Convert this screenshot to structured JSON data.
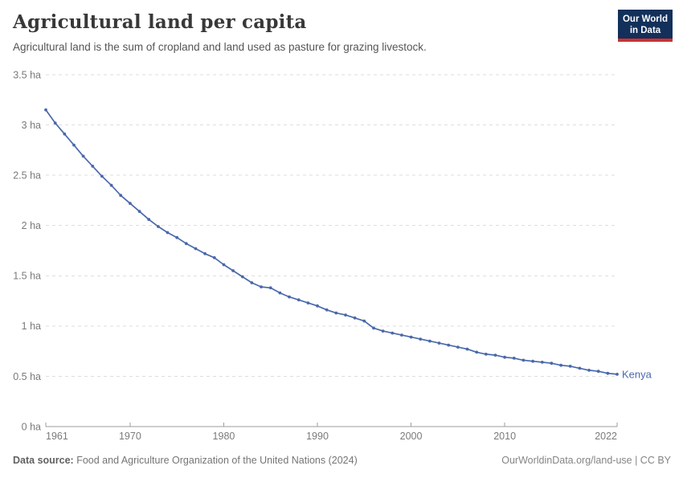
{
  "header": {
    "title": "Agricultural land per capita",
    "subtitle": "Agricultural land is the sum of cropland and land used as pasture for grazing livestock.",
    "logo": {
      "line1": "Our World",
      "line2": "in Data",
      "bg_color": "#12305a",
      "accent_color": "#cf3130"
    }
  },
  "footer": {
    "source_label": "Data source:",
    "source_text": "Food and Agriculture Organization of the United Nations (2024)",
    "attribution": "OurWorldinData.org/land-use | CC BY"
  },
  "chart_data": {
    "type": "line",
    "title": "Agricultural land per capita",
    "unit": "ha",
    "xlim": [
      1961,
      2022
    ],
    "ylim": [
      0,
      3.5
    ],
    "grid": "horizontal-dashed",
    "legend_position": "end-of-line-label",
    "x_ticks": [
      1961,
      1970,
      1980,
      1990,
      2000,
      2010,
      2022
    ],
    "y_ticks": [
      {
        "value": 0,
        "label": "0 ha"
      },
      {
        "value": 0.5,
        "label": "0.5 ha"
      },
      {
        "value": 1,
        "label": "1 ha"
      },
      {
        "value": 1.5,
        "label": "1.5 ha"
      },
      {
        "value": 2,
        "label": "2 ha"
      },
      {
        "value": 2.5,
        "label": "2.5 ha"
      },
      {
        "value": 3,
        "label": "3 ha"
      },
      {
        "value": 3.5,
        "label": "3.5 ha"
      }
    ],
    "series": [
      {
        "name": "Kenya",
        "color": "#4a68ab",
        "x": [
          1961,
          1962,
          1963,
          1964,
          1965,
          1966,
          1967,
          1968,
          1969,
          1970,
          1971,
          1972,
          1973,
          1974,
          1975,
          1976,
          1977,
          1978,
          1979,
          1980,
          1981,
          1982,
          1983,
          1984,
          1985,
          1986,
          1987,
          1988,
          1989,
          1990,
          1991,
          1992,
          1993,
          1994,
          1995,
          1996,
          1997,
          1998,
          1999,
          2000,
          2001,
          2002,
          2003,
          2004,
          2005,
          2006,
          2007,
          2008,
          2009,
          2010,
          2011,
          2012,
          2013,
          2014,
          2015,
          2016,
          2017,
          2018,
          2019,
          2020,
          2021,
          2022
        ],
        "values": [
          3.15,
          3.02,
          2.91,
          2.8,
          2.69,
          2.59,
          2.49,
          2.4,
          2.3,
          2.22,
          2.14,
          2.06,
          1.99,
          1.93,
          1.88,
          1.82,
          1.77,
          1.72,
          1.68,
          1.61,
          1.55,
          1.49,
          1.43,
          1.39,
          1.38,
          1.33,
          1.29,
          1.26,
          1.23,
          1.2,
          1.16,
          1.13,
          1.11,
          1.08,
          1.05,
          0.98,
          0.95,
          0.93,
          0.91,
          0.89,
          0.87,
          0.85,
          0.83,
          0.81,
          0.79,
          0.77,
          0.74,
          0.72,
          0.71,
          0.69,
          0.68,
          0.66,
          0.65,
          0.64,
          0.63,
          0.61,
          0.6,
          0.58,
          0.56,
          0.55,
          0.53,
          0.52
        ]
      }
    ],
    "style": {
      "grid_color": "#dedede",
      "axis_color": "#9e9e9e",
      "tick_label_color": "#7a7a7a"
    }
  }
}
